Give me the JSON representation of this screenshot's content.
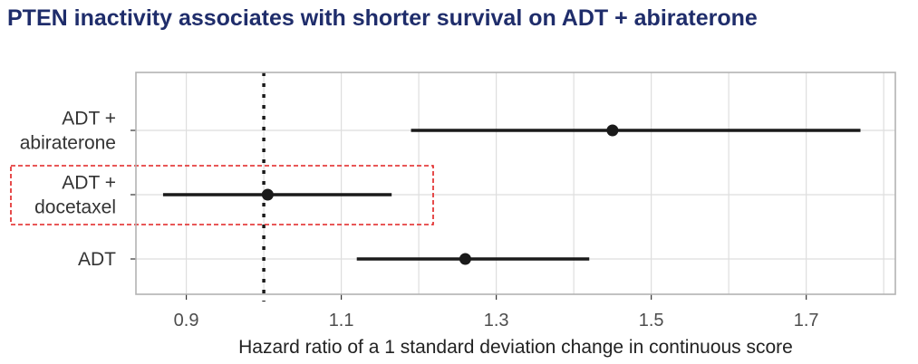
{
  "title": "PTEN inactivity associates with shorter survival on ADT + abiraterone",
  "chart_data": {
    "type": "forest",
    "categories": [
      {
        "lines": [
          "ADT +",
          "abiraterone"
        ],
        "hr": 1.45,
        "lower": 1.19,
        "upper": 1.77
      },
      {
        "lines": [
          "ADT +",
          "docetaxel"
        ],
        "hr": 1.005,
        "lower": 0.87,
        "upper": 1.165
      },
      {
        "lines": [
          "ADT"
        ],
        "hr": 1.26,
        "lower": 1.12,
        "upper": 1.42
      }
    ],
    "xlim": [
      0.835,
      1.815
    ],
    "xticks": [
      0.9,
      1.1,
      1.3,
      1.5,
      1.7
    ],
    "xtick_labels": [
      "0.9",
      "1.1",
      "1.3",
      "1.5",
      "1.7"
    ],
    "minor_xticks": [
      1.0,
      1.2,
      1.4,
      1.6,
      1.8
    ],
    "reference_line": 1.0,
    "xlabel": "Hazard ratio of a 1 standard deviation change in continuous score",
    "ylabel": "",
    "grid": true,
    "highlighted_category_index": 1,
    "colors": {
      "point": "#1a1a1a",
      "ci": "#1a1a1a",
      "reference": "#1a1a1a",
      "grid": "#dedede",
      "highlight_box": "#e02020",
      "title": "#1f2d6b",
      "panel_border": "#b3b3b3"
    }
  }
}
